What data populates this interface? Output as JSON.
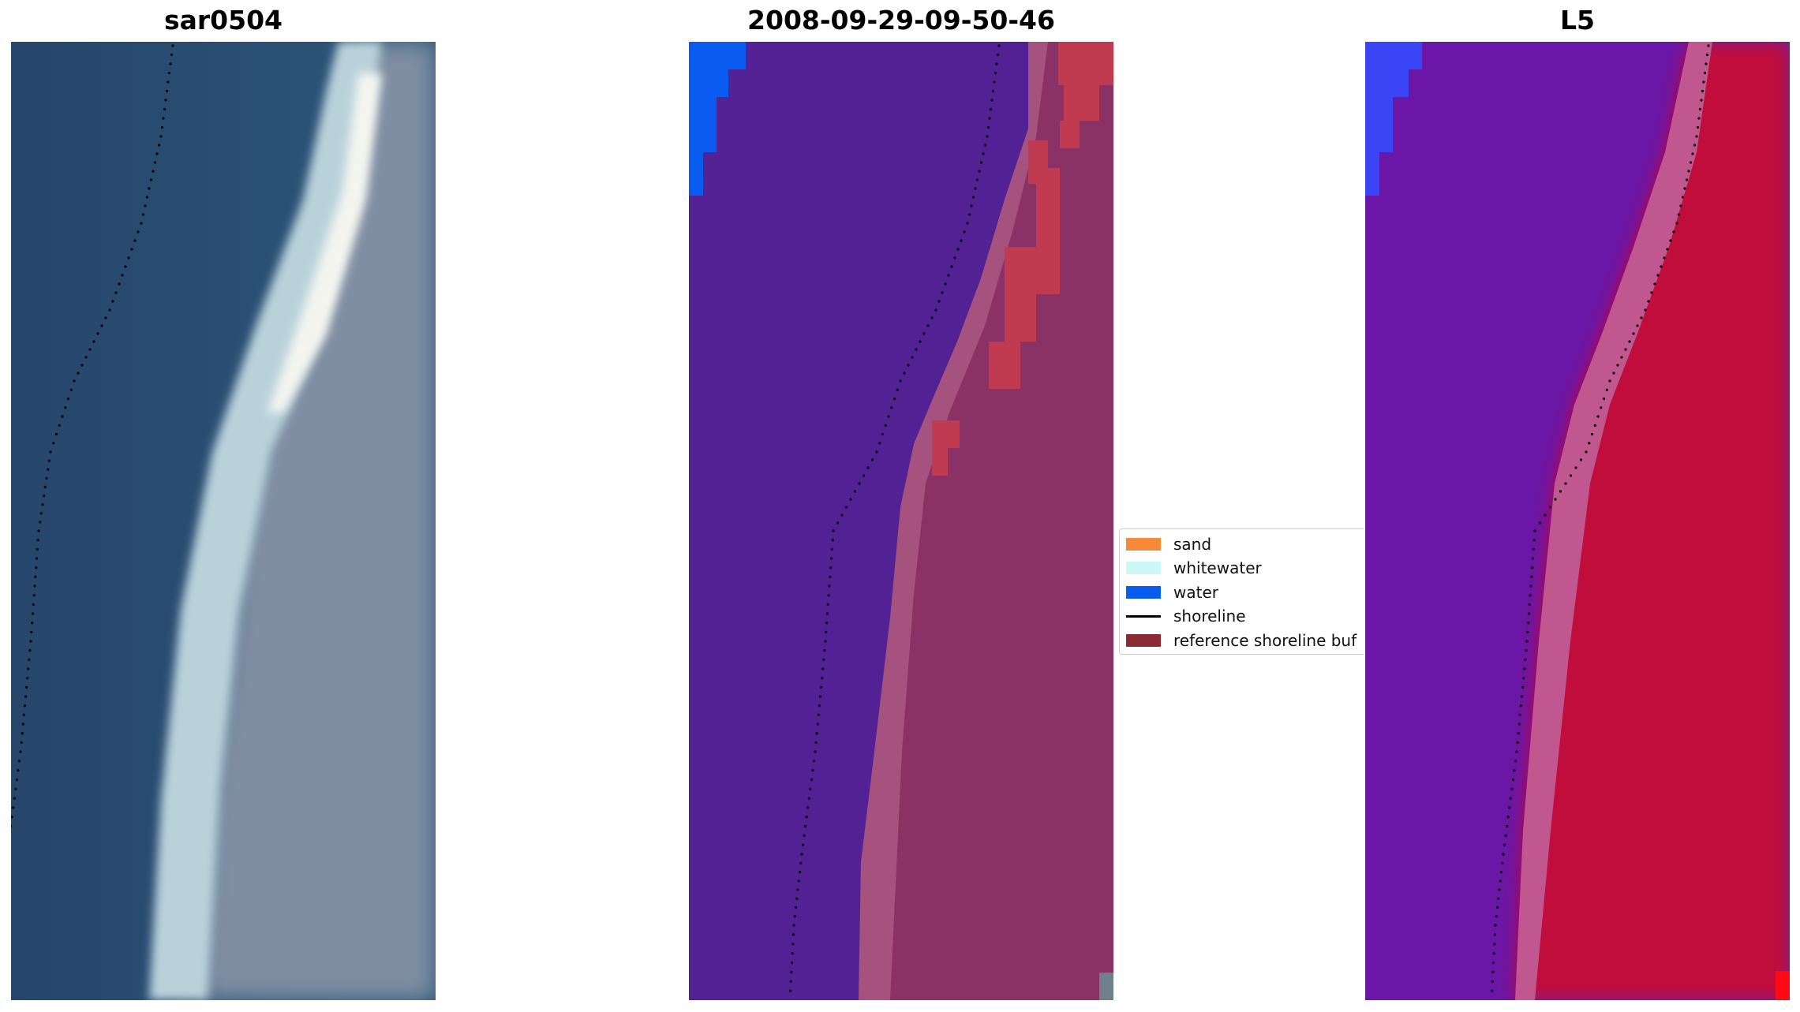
{
  "panels": [
    {
      "title": "sar0504",
      "kind": "rgb"
    },
    {
      "title": "2008-09-29-09-50-46",
      "kind": "classified"
    },
    {
      "title": "L5",
      "kind": "index"
    }
  ],
  "legend": {
    "items": [
      {
        "label": "sand",
        "color": "#f58a3a",
        "type": "patch"
      },
      {
        "label": "whitewater",
        "color": "#ccf7f7",
        "type": "patch"
      },
      {
        "label": "water",
        "color": "#0a5cf0",
        "type": "patch"
      },
      {
        "label": "shoreline",
        "color": "#000000",
        "type": "line"
      },
      {
        "label": "reference shoreline buf",
        "color": "#8b2a34",
        "type": "patch"
      }
    ]
  },
  "colors": {
    "rgb_water": "#2a4d72",
    "rgb_foam": "#e9eef0",
    "rgb_land": "#7c8aa0",
    "class_water": "#522194",
    "class_land": "#8c3366",
    "class_buffer": "#c03b4f",
    "class_blue": "#0a5cf0",
    "index_water": "#6a16a6",
    "index_land": "#c2053a",
    "index_blue": "#3a45f5",
    "index_red_pixel": "#ff0a14"
  }
}
